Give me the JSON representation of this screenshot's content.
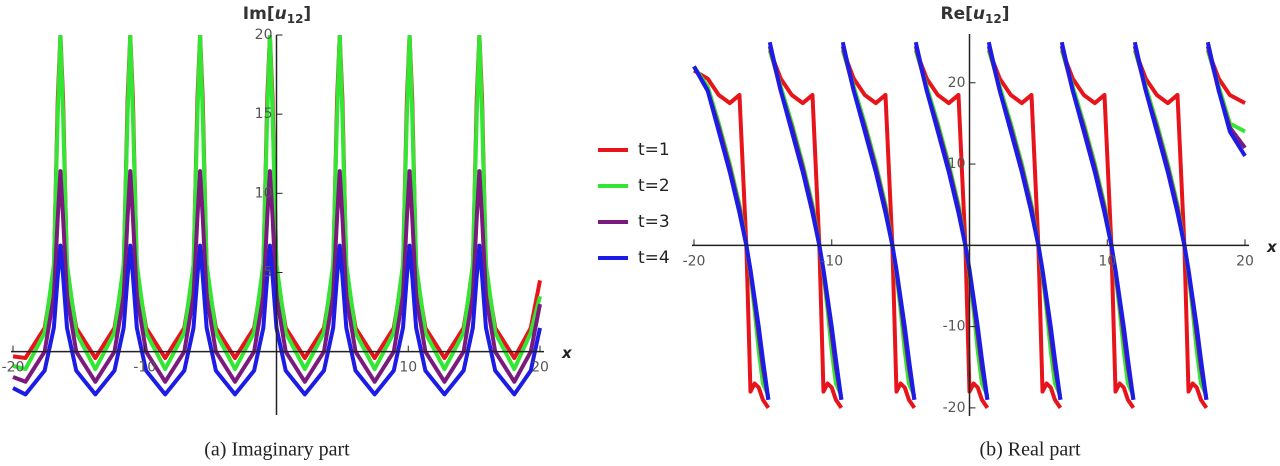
{
  "chart_data": [
    {
      "type": "line",
      "title": [
        "Im[",
        "u",
        "12",
        "]"
      ],
      "x_label": "x",
      "caption": "(a) Imaginary part",
      "xlim": [
        -20,
        20
      ],
      "ylim": [
        -4,
        20
      ],
      "xticks": [
        -20,
        -10,
        10,
        20
      ],
      "yticks": [
        5,
        10,
        15,
        20
      ],
      "x": [
        -20,
        -19.05,
        -17.6,
        -16.9,
        -16.6,
        -16.4,
        -16.2,
        -15.9,
        -15.2,
        -13.75,
        -12.3,
        -11.6,
        -11.3,
        -11.1,
        -10.9,
        -10.6,
        -9.9,
        -8.45,
        -7,
        -6.3,
        -6,
        -5.8,
        -5.6,
        -5.3,
        -4.6,
        -3.15,
        -1.7,
        -1,
        -0.7,
        -0.5,
        -0.3,
        0,
        0.7,
        2.15,
        3.6,
        4.3,
        4.6,
        4.8,
        5,
        5.3,
        6,
        7.45,
        8.9,
        9.6,
        9.9,
        10.1,
        10.3,
        10.6,
        11.3,
        12.75,
        14.2,
        14.9,
        15.2,
        15.4,
        15.6,
        15.9,
        16.6,
        18.05,
        19.3,
        20
      ],
      "series": [
        {
          "name": "t=1",
          "color": "#e8141b",
          "values": [
            -0.3,
            -0.4,
            1.5,
            5,
            16,
            20,
            16,
            5,
            1.5,
            -0.4,
            1.5,
            5,
            16,
            20,
            16,
            5,
            1.5,
            -0.4,
            1.5,
            5,
            16,
            20,
            16,
            5,
            1.5,
            -0.4,
            1.5,
            5,
            16,
            20,
            16,
            5,
            1.5,
            -0.4,
            1.5,
            5,
            16,
            20,
            16,
            5,
            1.5,
            -0.4,
            1.5,
            5,
            16,
            20,
            16,
            5,
            1.5,
            -0.4,
            1.5,
            5,
            16,
            20,
            16,
            5,
            1.5,
            -0.4,
            1.5,
            4.5
          ]
        },
        {
          "name": "t=2",
          "color": "#33e633",
          "values": [
            -0.9,
            -1.1,
            1.2,
            5.5,
            15,
            20,
            15,
            5.5,
            1.2,
            -1.1,
            1.2,
            5.5,
            15,
            20,
            15,
            5.5,
            1.2,
            -1.1,
            1.2,
            5.5,
            15,
            20,
            15,
            5.5,
            1.2,
            -1.1,
            1.2,
            5.5,
            15,
            20,
            15,
            5.5,
            1.2,
            -1.1,
            1.2,
            5.5,
            15,
            20,
            15,
            5.5,
            1.2,
            -1.1,
            1.2,
            5.5,
            15,
            20,
            15,
            5.5,
            1.2,
            -1.1,
            1.2,
            5.5,
            15,
            20,
            15,
            5.5,
            1.2,
            -1.1,
            1.2,
            3.5
          ]
        },
        {
          "name": "t=3",
          "color": "#7a1a7e",
          "values": [
            -1.6,
            -1.9,
            0,
            3.5,
            8.5,
            11.4,
            8.5,
            3.5,
            0,
            -1.9,
            0,
            3.5,
            8.5,
            11.4,
            8.5,
            3.5,
            0,
            -1.9,
            0,
            3.5,
            8.5,
            11.4,
            8.5,
            3.5,
            0,
            -1.9,
            0,
            3.5,
            8.5,
            11.4,
            8.5,
            3.5,
            0,
            -1.9,
            0,
            3.5,
            8.5,
            11.4,
            8.5,
            3.5,
            0,
            -1.9,
            0,
            3.5,
            8.5,
            11.4,
            8.5,
            3.5,
            0,
            -1.9,
            0,
            3.5,
            8.5,
            11.4,
            8.5,
            3.5,
            0,
            -1.9,
            0,
            3
          ]
        },
        {
          "name": "t=4",
          "color": "#1c1ce6",
          "values": [
            -2.3,
            -2.7,
            -1.2,
            1.5,
            4.8,
            6.7,
            4.8,
            1.5,
            -1.2,
            -2.7,
            -1.2,
            1.5,
            4.8,
            6.7,
            4.8,
            1.5,
            -1.2,
            -2.7,
            -1.2,
            1.5,
            4.8,
            6.7,
            4.8,
            1.5,
            -1.2,
            -2.7,
            -1.2,
            1.5,
            4.8,
            6.7,
            4.8,
            1.5,
            -1.2,
            -2.7,
            -1.2,
            1.5,
            4.8,
            6.7,
            4.8,
            1.5,
            -1.2,
            -2.7,
            -1.2,
            1.5,
            4.8,
            6.7,
            4.8,
            1.5,
            -1.2,
            -2.7,
            -1.2,
            1.5,
            4.8,
            6.7,
            4.8,
            1.5,
            -1.2,
            -2.7,
            -1.2,
            1.5
          ]
        }
      ]
    },
    {
      "type": "line",
      "title": [
        "Re[",
        "u",
        "12",
        "]"
      ],
      "x_label": "x",
      "caption": "(b) Real part",
      "xlim": [
        -20,
        20
      ],
      "ylim": [
        -21,
        26
      ],
      "xticks": [
        -20,
        -10,
        10,
        20
      ],
      "yticks": [
        -20,
        -10,
        10,
        20
      ],
      "x": [
        -20,
        -19,
        -18.2,
        -17.4,
        -16.7,
        -16.2,
        -15.9,
        -15.6,
        -15.3,
        -15,
        -14.6,
        -14.55,
        -14.5,
        -13.7,
        -12.9,
        -12.1,
        -11.4,
        -10.9,
        -10.6,
        -10.3,
        -10,
        -9.7,
        -9.3,
        -9.25,
        -9.2,
        -8.4,
        -7.6,
        -6.8,
        -6.1,
        -5.6,
        -5.3,
        -5,
        -4.7,
        -4.4,
        -4,
        -3.95,
        -3.9,
        -3.1,
        -2.3,
        -1.5,
        -0.8,
        -0.3,
        0,
        0.3,
        0.6,
        0.9,
        1.3,
        1.35,
        1.4,
        2.2,
        3,
        3.8,
        4.5,
        5,
        5.3,
        5.6,
        5.9,
        6.2,
        6.6,
        6.65,
        6.7,
        7.5,
        8.3,
        9.1,
        9.8,
        10.3,
        10.6,
        10.9,
        11.2,
        11.5,
        11.9,
        11.95,
        12,
        12.8,
        13.6,
        14.4,
        15.1,
        15.6,
        15.9,
        16.2,
        16.5,
        16.8,
        17.2,
        17.25,
        17.3,
        18.1,
        18.9,
        20
      ],
      "series": [
        {
          "color": "#e8141b",
          "values": [
            21.5,
            20.5,
            18.5,
            17.5,
            18.5,
            0,
            -18,
            -17,
            -17.5,
            -19,
            -20,
            null,
            24,
            20.5,
            18.5,
            17.5,
            18.5,
            0,
            -18,
            -17,
            -17.5,
            -19,
            -20,
            null,
            24,
            20.5,
            18.5,
            17.5,
            18.5,
            0,
            -18,
            -17,
            -17.5,
            -19,
            -20,
            null,
            24,
            20.5,
            18.5,
            17.5,
            18.5,
            0,
            -18,
            -17,
            -17.5,
            -19,
            -20,
            null,
            24,
            20.5,
            18.5,
            17.5,
            18.5,
            0,
            -18,
            -17,
            -17.5,
            -19,
            -20,
            null,
            24,
            20.5,
            18.5,
            17.5,
            18.5,
            0,
            -18,
            -17,
            -17.5,
            -19,
            -20,
            null,
            24,
            20.5,
            18.5,
            17.5,
            18.5,
            0,
            -18,
            -17,
            -17.5,
            -19,
            -20,
            null,
            24,
            20.5,
            18.5,
            17.5
          ]
        },
        {
          "color": "#33e633",
          "values": [
            22,
            19.5,
            15,
            10,
            5,
            0,
            -3.5,
            -8,
            -13,
            -17,
            -18.5,
            null,
            24,
            19.5,
            15,
            10,
            5,
            0,
            -3.5,
            -8,
            -13,
            -17,
            -18.5,
            null,
            24,
            19.5,
            15,
            10,
            5,
            0,
            -3.5,
            -8,
            -13,
            -17,
            -18.5,
            null,
            24,
            19.5,
            15,
            10,
            5,
            0,
            -3.5,
            -8,
            -13,
            -17,
            -18.5,
            null,
            24,
            19.5,
            15,
            10,
            5,
            0,
            -3.5,
            -8,
            -13,
            -17,
            -18.5,
            null,
            24,
            19.5,
            15,
            10,
            5,
            0,
            -3.5,
            -8,
            -13,
            -17,
            -18.5,
            null,
            24,
            19.5,
            15,
            10,
            5,
            0,
            -3.5,
            -8,
            -13,
            -17,
            -18.5,
            null,
            24,
            19.5,
            15,
            14
          ]
        },
        {
          "color": "#7a1a7e",
          "values": [
            22,
            19,
            14.5,
            9.5,
            4.5,
            0,
            -3.2,
            -7,
            -11,
            -15,
            -19,
            null,
            24.5,
            19,
            14.5,
            9.5,
            4.5,
            0,
            -3.2,
            -7,
            -11,
            -15,
            -19,
            null,
            24.5,
            19,
            14.5,
            9.5,
            4.5,
            0,
            -3.2,
            -7,
            -11,
            -15,
            -19,
            null,
            24.5,
            19,
            14.5,
            9.5,
            4.5,
            0,
            -3.2,
            -7,
            -11,
            -15,
            -19,
            null,
            24.5,
            19,
            14.5,
            9.5,
            4.5,
            0,
            -3.2,
            -7,
            -11,
            -15,
            -19,
            null,
            24.5,
            19,
            14.5,
            9.5,
            4.5,
            0,
            -3.2,
            -7,
            -11,
            -15,
            -19,
            null,
            24.5,
            19,
            14.5,
            9.5,
            4.5,
            0,
            -3.2,
            -7,
            -11,
            -15,
            -19,
            null,
            24.5,
            19,
            14.5,
            12
          ]
        },
        {
          "color": "#1c1ce6",
          "values": [
            22,
            19,
            14,
            9,
            4,
            0,
            -3,
            -6.5,
            -10,
            -14,
            -19,
            null,
            25,
            19,
            14,
            9,
            4,
            0,
            -3,
            -6.5,
            -10,
            -14,
            -19,
            null,
            25,
            19,
            14,
            9,
            4,
            0,
            -3,
            -6.5,
            -10,
            -14,
            -19,
            null,
            25,
            19,
            14,
            9,
            4,
            0,
            -3,
            -6.5,
            -10,
            -14,
            -19,
            null,
            25,
            19,
            14,
            9,
            4,
            0,
            -3,
            -6.5,
            -10,
            -14,
            -19,
            null,
            25,
            19,
            14,
            9,
            4,
            0,
            -3,
            -6.5,
            -10,
            -14,
            -19,
            null,
            25,
            19,
            14,
            9,
            4,
            0,
            -3,
            -6.5,
            -10,
            -14,
            -19,
            null,
            25,
            19,
            14,
            11
          ]
        }
      ]
    }
  ]
}
